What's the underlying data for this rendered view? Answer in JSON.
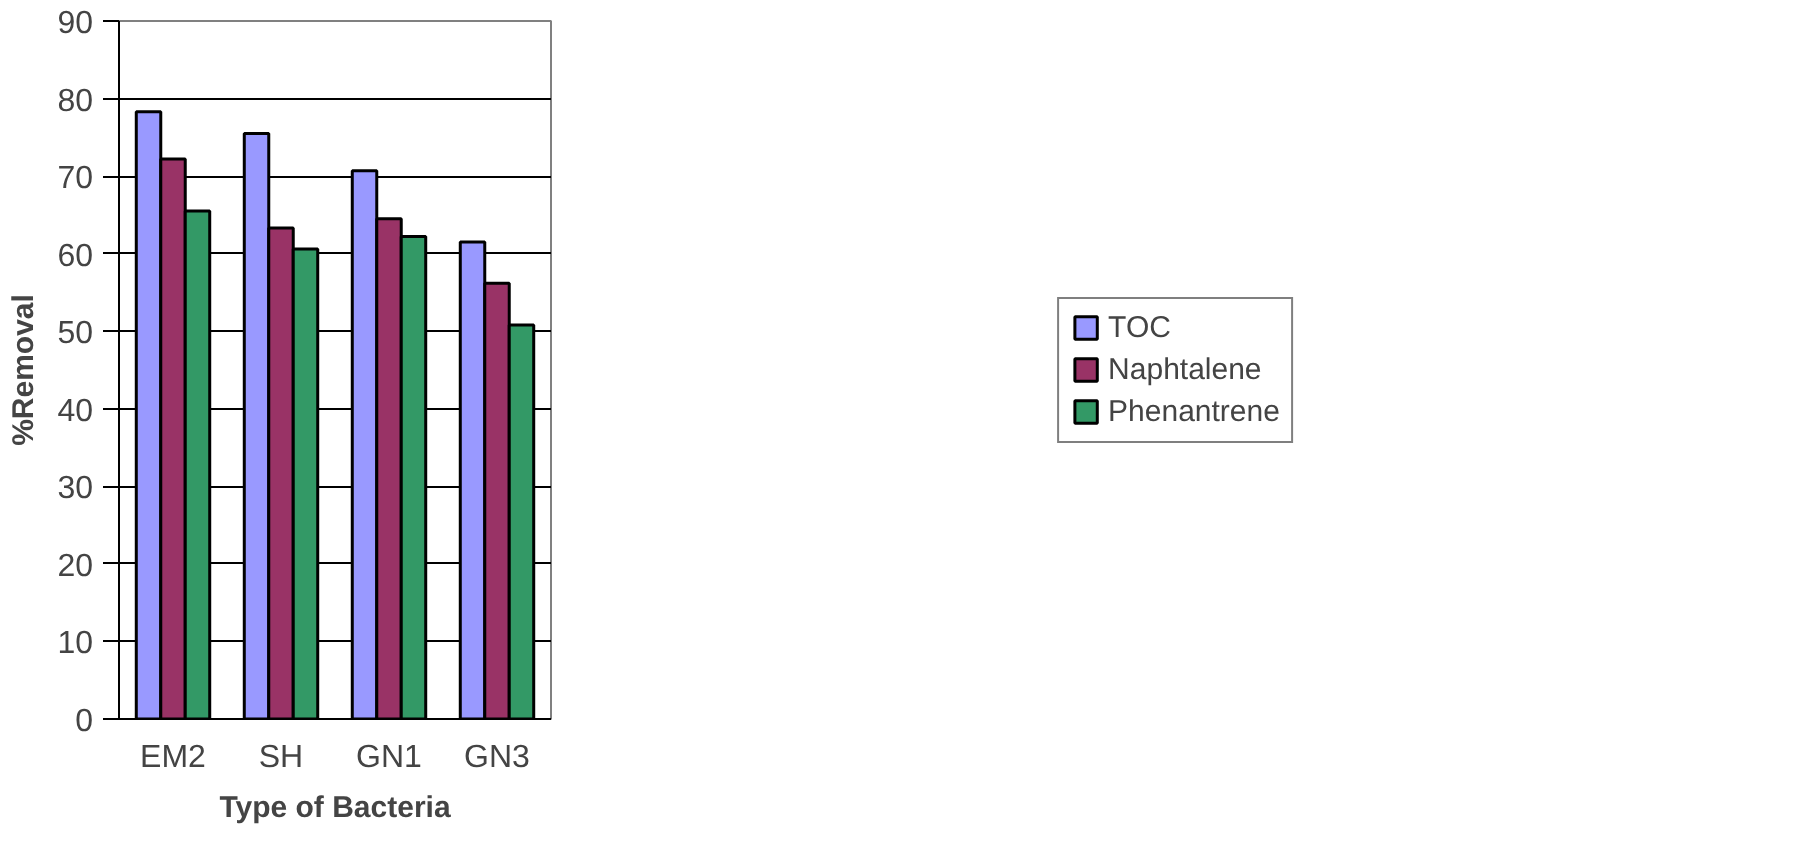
{
  "chart_data": {
    "type": "bar",
    "xlabel": "Type of Bacteria",
    "ylabel": "%Removal",
    "categories": [
      "EM2",
      "SH",
      "GN1",
      "GN3"
    ],
    "series": [
      {
        "name": "TOC",
        "color": "#9999ff",
        "values": [
          78.3,
          75.5,
          70.7,
          61.5
        ]
      },
      {
        "name": "Naphtalene",
        "color": "#993366",
        "values": [
          72.2,
          63.3,
          64.5,
          56.2
        ]
      },
      {
        "name": "Phenantrene",
        "color": "#339966",
        "values": [
          65.5,
          60.6,
          62.2,
          50.8
        ]
      }
    ],
    "ylim": [
      0,
      90
    ],
    "yticks": [
      0,
      10,
      20,
      30,
      40,
      50,
      60,
      70,
      80,
      90
    ],
    "grid": "y",
    "legend": "right"
  }
}
